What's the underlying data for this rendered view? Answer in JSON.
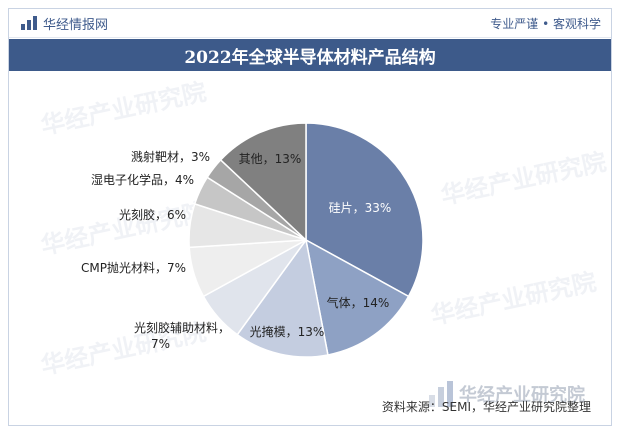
{
  "header": {
    "logo_text": "华经情报网",
    "slogan": "专业严谨 • 客观科学"
  },
  "watermark": {
    "text": "华经产业研究院",
    "brand": "华经产业研究院"
  },
  "footer": {
    "source": "资料来源：SEMI，华经产业研究院整理"
  },
  "colors": {
    "title_bar": "#3d5a8a",
    "slices": [
      "#6a7fa8",
      "#8ea1c4",
      "#c4cde0",
      "#e0e4ec",
      "#eeeeee",
      "#e6e6e6",
      "#c6c6c6",
      "#a6a6a6",
      "#808080"
    ]
  },
  "chart_data": {
    "type": "pie",
    "title": "2022年全球半导体材料产品结构",
    "slices": [
      {
        "label": "硅片，33%",
        "value": 33
      },
      {
        "label": "气体，14%",
        "value": 14
      },
      {
        "label": "光掩模，13%",
        "value": 13
      },
      {
        "label": "光刻胶辅助材料，7%",
        "value": 7
      },
      {
        "label": "CMP抛光材料，7%",
        "value": 7
      },
      {
        "label": "光刻胶，6%",
        "value": 6
      },
      {
        "label": "湿电子化学品，4%",
        "value": 4
      },
      {
        "label": "溅射靶材，3%",
        "value": 3
      },
      {
        "label": "其他，13%",
        "value": 13
      }
    ]
  }
}
